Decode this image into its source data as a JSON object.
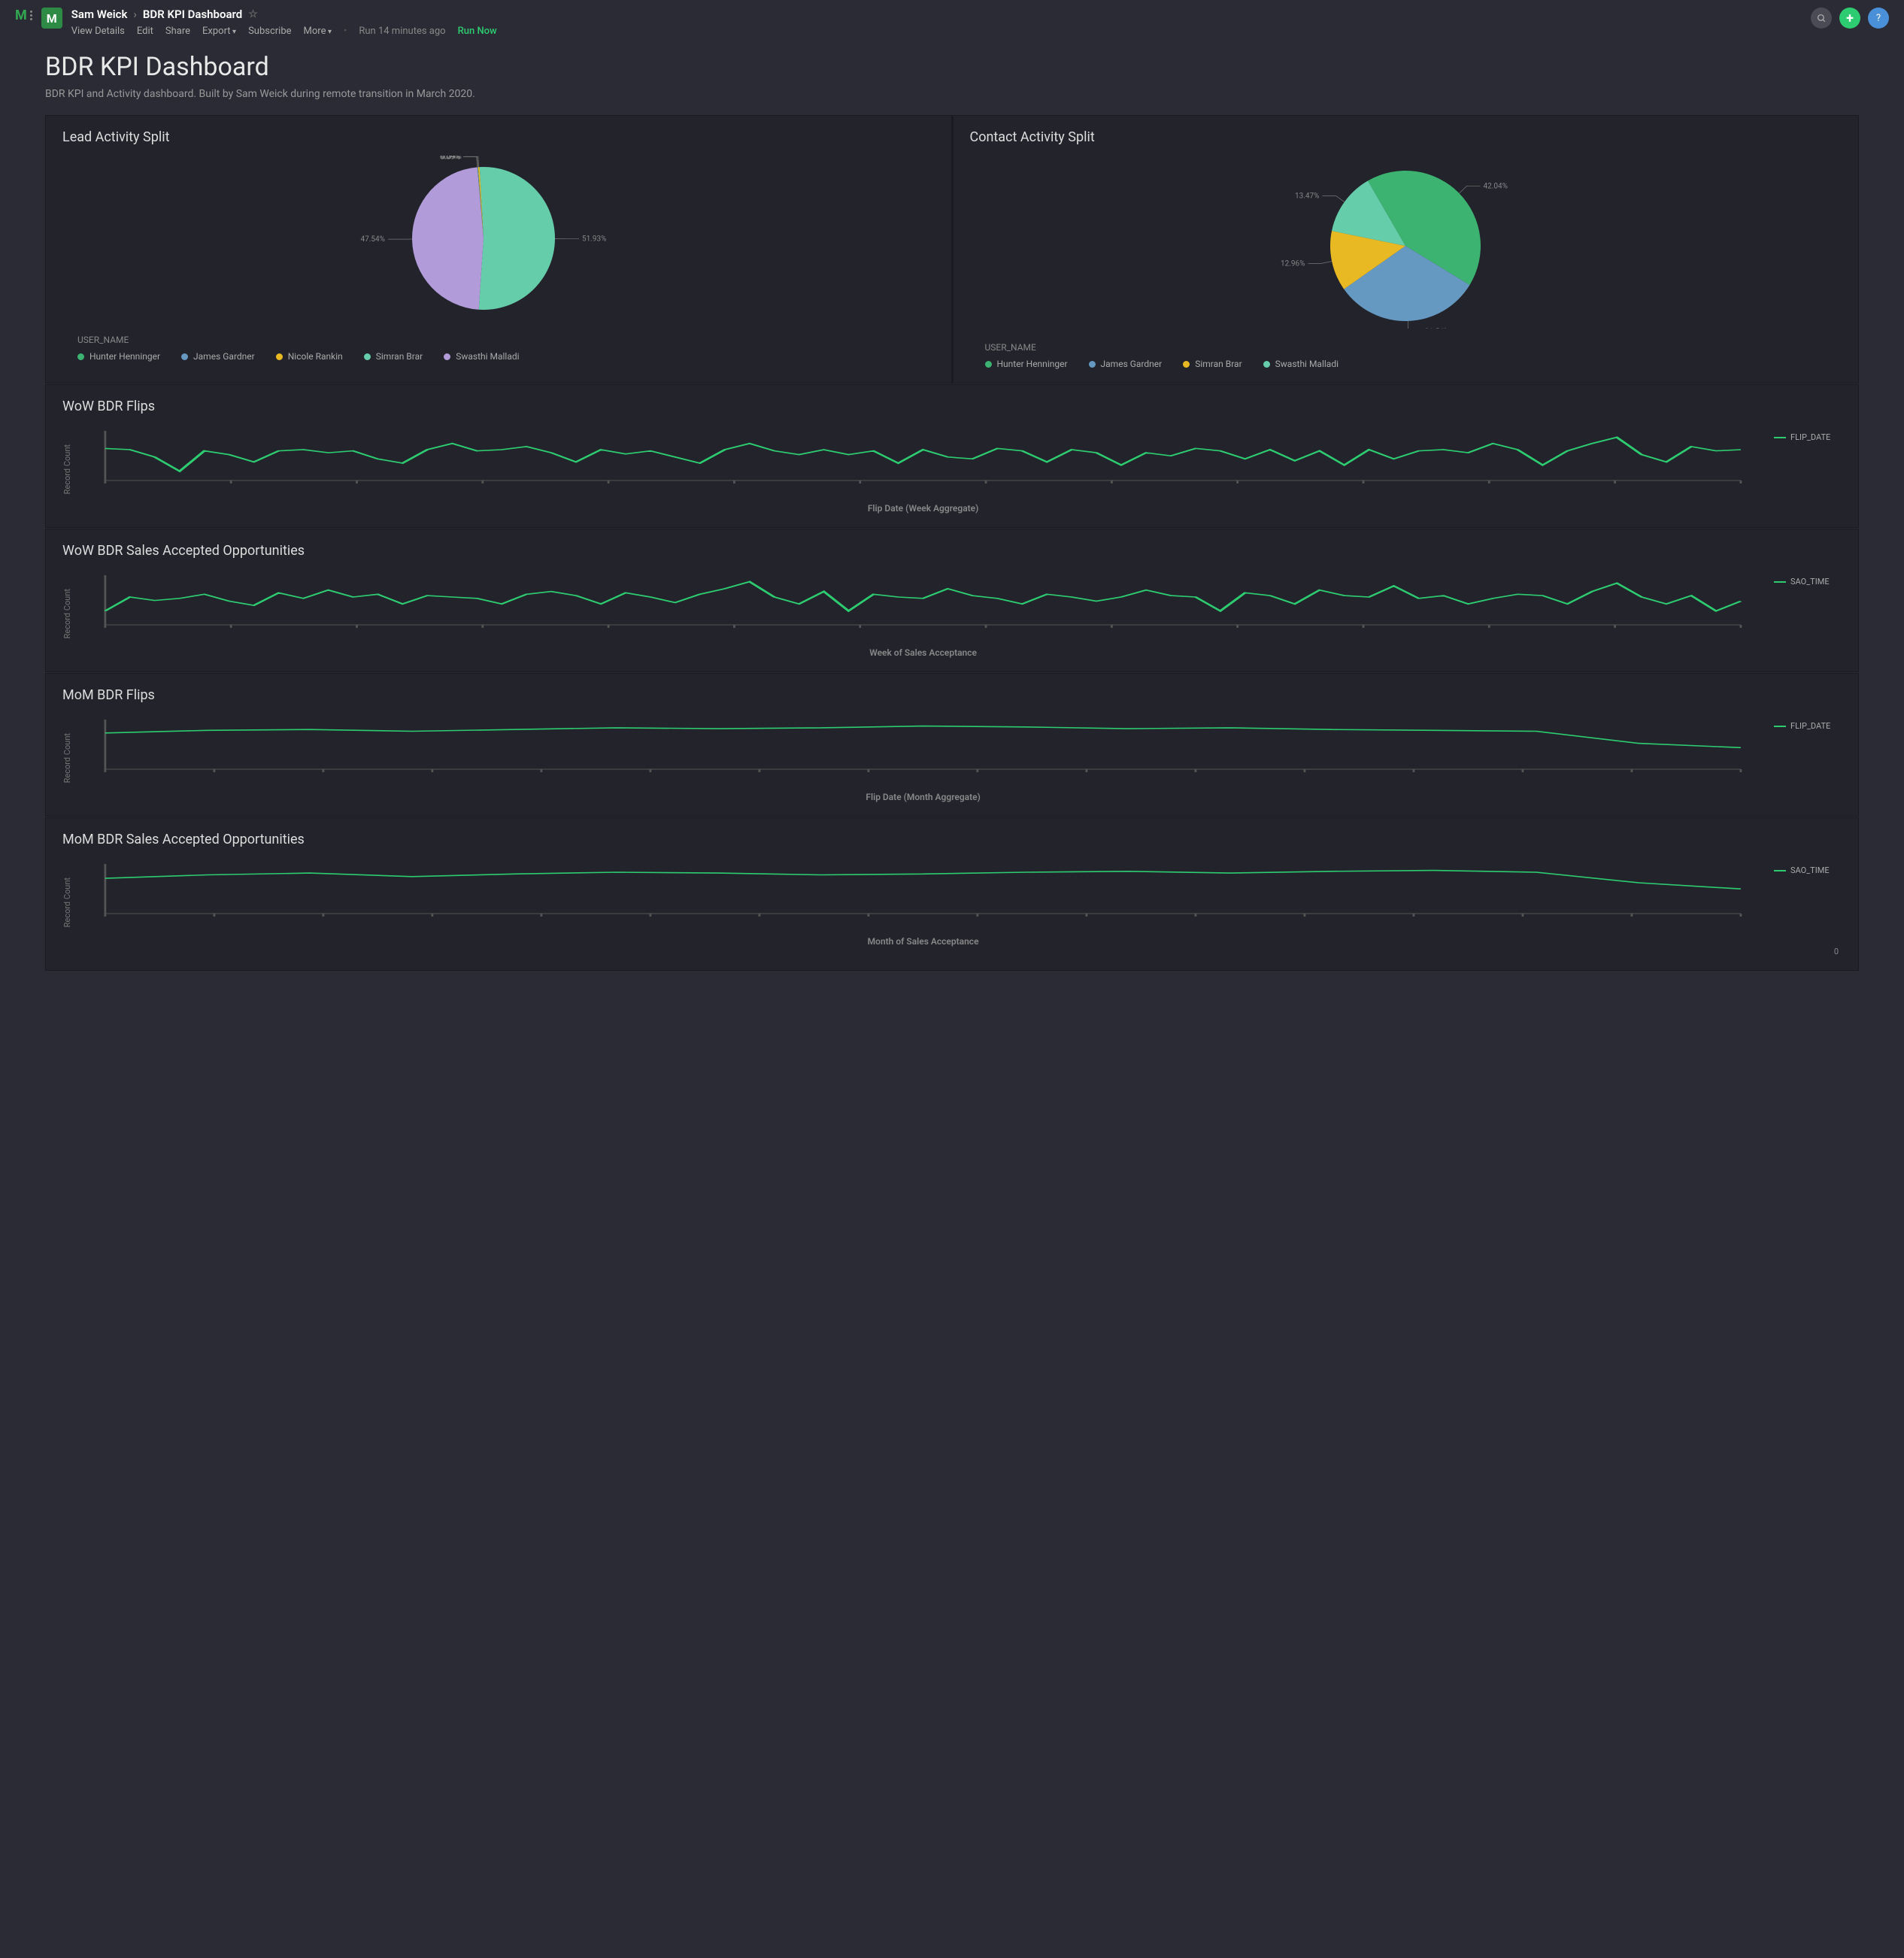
{
  "header": {
    "owner": "Sam Weick",
    "title": "BDR KPI Dashboard",
    "toolbar": {
      "view_details": "View Details",
      "edit": "Edit",
      "share": "Share",
      "export": "Export",
      "subscribe": "Subscribe",
      "more": "More",
      "run_status": "Run 14 minutes ago",
      "run_now": "Run Now"
    }
  },
  "page": {
    "title": "BDR KPI Dashboard",
    "description": "BDR KPI and Activity dashboard. Built by Sam Weick during remote transition in March 2020."
  },
  "colors": {
    "green": "#3cb371",
    "blue": "#6699c2",
    "yellow": "#e8b923",
    "teal": "#66cdaa",
    "purple": "#b19cd9",
    "line": "#2ecc71",
    "axis": "#555"
  },
  "lead_split": {
    "title": "Lead Activity Split",
    "legend_title": "USER_NAME",
    "slices": [
      {
        "label": "Hunter Henninger",
        "value": 0.09,
        "color": "#3cb371"
      },
      {
        "label": "James Gardner",
        "value": 0.09,
        "color": "#6699c2"
      },
      {
        "label": "Nicole Rankin",
        "value": 0.34,
        "color": "#e8b923"
      },
      {
        "label": "Simran Brar",
        "value": 51.93,
        "color": "#66cdaa"
      },
      {
        "label": "Swasthi Malladi",
        "value": 47.54,
        "color": "#b19cd9"
      }
    ]
  },
  "contact_split": {
    "title": "Contact Activity Split",
    "legend_title": "USER_NAME",
    "slices": [
      {
        "label": "Hunter Henninger",
        "value": 42.04,
        "color": "#3cb371"
      },
      {
        "label": "James Gardner",
        "value": 31.54,
        "color": "#6699c2"
      },
      {
        "label": "Simran Brar",
        "value": 12.96,
        "color": "#e8b923"
      },
      {
        "label": "Swasthi Malladi",
        "value": 13.47,
        "color": "#66cdaa"
      }
    ]
  },
  "wow_flips": {
    "title": "WoW BDR Flips",
    "ylabel": "Record\nCount",
    "xlabel": "Flip Date (Week Aggregate)",
    "legend": "FLIP_DATE",
    "color": "#2ecc71",
    "data": [
      52,
      50,
      38,
      15,
      48,
      42,
      30,
      48,
      50,
      45,
      48,
      35,
      28,
      50,
      60,
      48,
      50,
      55,
      45,
      30,
      50,
      43,
      48,
      38,
      28,
      50,
      60,
      48,
      42,
      50,
      42,
      48,
      28,
      50,
      38,
      35,
      52,
      48,
      30,
      50,
      45,
      25,
      45,
      40,
      52,
      48,
      35,
      50,
      32,
      48,
      25,
      50,
      35,
      48,
      50,
      45,
      60,
      50,
      25,
      48,
      60,
      70,
      42,
      30,
      55,
      48,
      50
    ]
  },
  "wow_sao": {
    "title": "WoW BDR Sales Accepted Opportunities",
    "ylabel": "Record\nCount",
    "xlabel": "Week of Sales Acceptance",
    "legend": "SAO_TIME",
    "color": "#2ecc71",
    "data": [
      20,
      40,
      35,
      38,
      44,
      34,
      28,
      46,
      38,
      50,
      40,
      44,
      30,
      42,
      40,
      38,
      30,
      44,
      48,
      42,
      30,
      46,
      40,
      32,
      44,
      52,
      62,
      40,
      30,
      48,
      20,
      44,
      40,
      38,
      52,
      42,
      38,
      30,
      44,
      40,
      34,
      40,
      50,
      42,
      40,
      20,
      46,
      42,
      30,
      50,
      42,
      40,
      56,
      38,
      42,
      30,
      38,
      44,
      42,
      30,
      48,
      60,
      40,
      30,
      42,
      20,
      34
    ]
  },
  "mom_flips": {
    "title": "MoM BDR Flips",
    "ylabel": "Record\nCount",
    "xlabel": "Flip Date (Month Aggregate)",
    "legend": "FLIP_DATE",
    "color": "#2ecc71",
    "data": [
      42,
      45,
      46,
      44,
      46,
      48,
      47,
      48,
      50,
      49,
      47,
      48,
      46,
      45,
      44,
      30,
      25
    ]
  },
  "mom_sao": {
    "title": "MoM BDR Sales Accepted Opportunities",
    "ylabel": "Record\nCount",
    "xlabel": "Month of Sales Acceptance",
    "legend": "SAO_TIME",
    "extra_label": "0",
    "color": "#2ecc71",
    "data": [
      40,
      44,
      46,
      42,
      45,
      47,
      46,
      44,
      45,
      47,
      48,
      46,
      48,
      49,
      47,
      35,
      28
    ]
  }
}
